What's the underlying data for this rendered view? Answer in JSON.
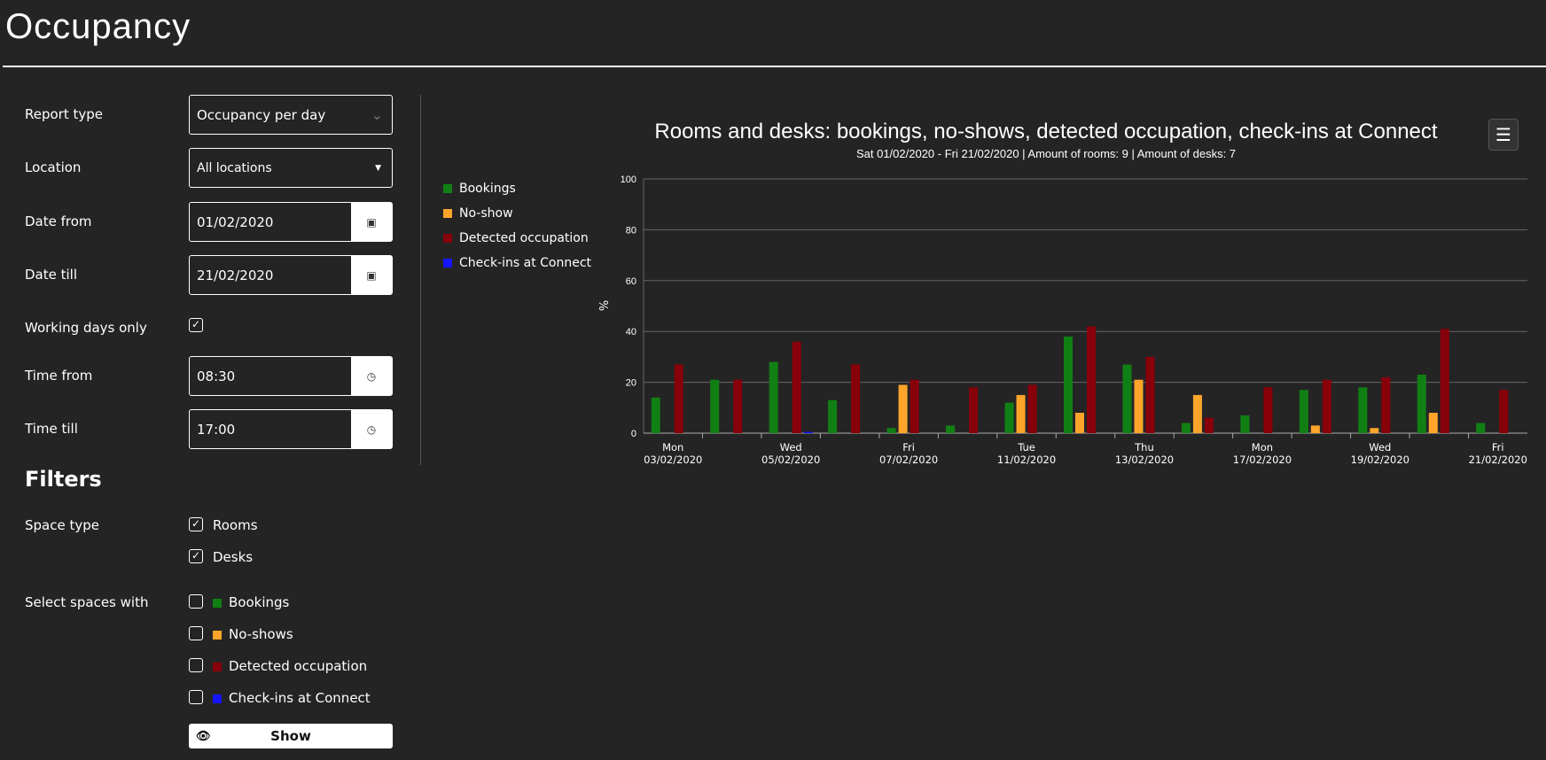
{
  "page": {
    "title": "Occupancy"
  },
  "form": {
    "report_type": {
      "label": "Report type",
      "value": "Occupancy per day"
    },
    "location": {
      "label": "Location",
      "value": "All locations"
    },
    "date_from": {
      "label": "Date from",
      "value": "01/02/2020"
    },
    "date_till": {
      "label": "Date till",
      "value": "21/02/2020"
    },
    "working_days": {
      "label": "Working days only",
      "checked": true
    },
    "time_from": {
      "label": "Time from",
      "value": "08:30"
    },
    "time_till": {
      "label": "Time till",
      "value": "17:00"
    }
  },
  "filters": {
    "heading": "Filters",
    "space_type_label": "Space type",
    "space_types": [
      {
        "label": "Rooms",
        "checked": true
      },
      {
        "label": "Desks",
        "checked": true
      }
    ],
    "select_label": "Select spaces with",
    "select_items": [
      {
        "label": "Bookings",
        "color": "#118014"
      },
      {
        "label": "No-shows",
        "color": "#fda52b"
      },
      {
        "label": "Detected occupation",
        "color": "#880009"
      },
      {
        "label": "Check-ins at Connect",
        "color": "#1414ff"
      }
    ],
    "show_label": "Show"
  },
  "chart_data": {
    "type": "bar",
    "title": "Rooms and desks: bookings, no-shows, detected occupation, check-ins at Connect",
    "subtitle": "Sat 01/02/2020 - Fri 21/02/2020 | Amount of rooms: 9 | Amount of desks: 7",
    "ylabel": "%",
    "ylim": [
      0,
      100
    ],
    "yticks": [
      0,
      20,
      40,
      60,
      80,
      100
    ],
    "grid": true,
    "legend": "left",
    "categories": [
      "03/02/2020",
      "04/02/2020",
      "05/02/2020",
      "06/02/2020",
      "07/02/2020",
      "10/02/2020",
      "11/02/2020",
      "12/02/2020",
      "13/02/2020",
      "14/02/2020",
      "17/02/2020",
      "18/02/2020",
      "19/02/2020",
      "20/02/2020",
      "21/02/2020"
    ],
    "tick_labels": [
      [
        "Mon",
        "03/02/2020"
      ],
      [
        "",
        ""
      ],
      [
        "Wed",
        "05/02/2020"
      ],
      [
        "",
        ""
      ],
      [
        "Fri",
        "07/02/2020"
      ],
      [
        "",
        ""
      ],
      [
        "Tue",
        "11/02/2020"
      ],
      [
        "",
        ""
      ],
      [
        "Thu",
        "13/02/2020"
      ],
      [
        "",
        ""
      ],
      [
        "Mon",
        "17/02/2020"
      ],
      [
        "",
        ""
      ],
      [
        "Wed",
        "19/02/2020"
      ],
      [
        "",
        ""
      ],
      [
        "Fri",
        "21/02/2020"
      ]
    ],
    "series": [
      {
        "name": "Bookings",
        "color": "#118014",
        "values": [
          14,
          21,
          28,
          13,
          2,
          3,
          12,
          38,
          27,
          4,
          7,
          17,
          18,
          23,
          4
        ]
      },
      {
        "name": "No-show",
        "color": "#fda52b",
        "values": [
          0,
          0,
          0,
          0,
          19,
          0,
          15,
          8,
          21,
          15,
          0,
          3,
          2,
          8,
          0
        ]
      },
      {
        "name": "Detected occupation",
        "color": "#880009",
        "values": [
          27,
          21,
          36,
          27,
          21,
          18,
          19,
          42,
          30,
          6,
          18,
          21,
          22,
          41,
          17
        ]
      },
      {
        "name": "Check-ins at Connect",
        "color": "#1414ff",
        "values": [
          0,
          0,
          0.5,
          0,
          0,
          0,
          0,
          0,
          0,
          0,
          0,
          0,
          0,
          0,
          0
        ]
      }
    ]
  }
}
